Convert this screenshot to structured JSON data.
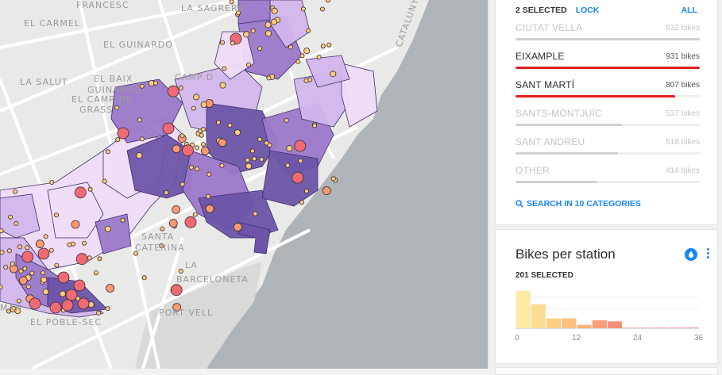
{
  "map": {
    "labels": [
      "FRANCESC",
      "LA SAGRERA",
      "EL CARMEL",
      "EL GUINARDÓ",
      "LA SALUT",
      "EL BAIX",
      "GUINARDÓ",
      "CAMP D",
      "EL CAMP DE",
      "GRASS",
      "SANTA",
      "CATERINA",
      "LA",
      "BARCELONETA",
      "PORT VELL",
      "EL POBLE-SEC",
      "MAN",
      "CATALUNYA"
    ],
    "colors": {
      "water": "#a9b0b3",
      "land": "#e9e9e7",
      "road": "#ffffff",
      "district_dark": "#6c55a8",
      "district_mid": "#9b79c9",
      "district_light": "#d2b6ec",
      "district_pale": "#efdcf8",
      "border": "#3d2d6b",
      "dot_yellow": "#fecd78",
      "dot_orange": "#fa9a6e",
      "dot_red": "#f06a74"
    }
  },
  "category_widget": {
    "selected_text": "2 SELECTED",
    "lock_label": "LOCK",
    "all_label": "ALL",
    "items": [
      {
        "name": "CIUTAT VELLA",
        "value": "932 bikes",
        "fraction": 1.0,
        "selected": false
      },
      {
        "name": "EIXAMPLE",
        "value": "931 bikes",
        "fraction": 0.999,
        "selected": true
      },
      {
        "name": "SANT MARTÍ",
        "value": "807 bikes",
        "fraction": 0.866,
        "selected": true
      },
      {
        "name": "SANTS-MONTJUÏC",
        "value": "537 bikes",
        "fraction": 0.576,
        "selected": false
      },
      {
        "name": "SANT ANDREU",
        "value": "518 bikes",
        "fraction": 0.556,
        "selected": false
      },
      {
        "name": "OTHER",
        "value": "414 bikes",
        "fraction": 0.444,
        "selected": false
      }
    ],
    "search_label": "SEARCH IN 10 CATEGORIES"
  },
  "histogram_widget": {
    "title": "Bikes per station",
    "selected_text": "201 SELECTED",
    "ticks": [
      "0",
      "12",
      "24",
      "36"
    ]
  },
  "chart_data": {
    "type": "bar",
    "title": "Bikes per station",
    "x_range": [
      0,
      36
    ],
    "bin_width": 3,
    "values": [
      1.0,
      0.65,
      0.28,
      0.28,
      0.11,
      0.23,
      0.2,
      0.03,
      0.03,
      0.03,
      0.03,
      0.03
    ],
    "colors": [
      "#fce9a6",
      "#fbdc93",
      "#fbcf86",
      "#fac27d",
      "#f8b179",
      "#f7a076",
      "#f48e74",
      "#f17c72",
      "#ee6a70",
      "#ea5a6e",
      "#e44d6c",
      "#de416b"
    ]
  }
}
